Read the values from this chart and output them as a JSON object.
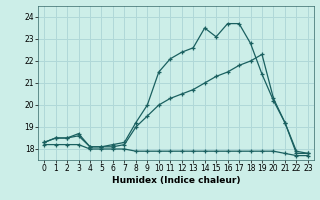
{
  "title": "",
  "xlabel": "Humidex (Indice chaleur)",
  "ylabel": "",
  "bg_color": "#cceee8",
  "line_color": "#1a6060",
  "grid_color": "#b0d8d8",
  "xlim": [
    -0.5,
    23.5
  ],
  "ylim": [
    17.5,
    24.5
  ],
  "x_ticks": [
    0,
    1,
    2,
    3,
    4,
    5,
    6,
    7,
    8,
    9,
    10,
    11,
    12,
    13,
    14,
    15,
    16,
    17,
    18,
    19,
    20,
    21,
    22,
    23
  ],
  "y_ticks": [
    18,
    19,
    20,
    21,
    22,
    23,
    24
  ],
  "series1_x": [
    0,
    1,
    2,
    3,
    4,
    5,
    6,
    7,
    8,
    9,
    10,
    11,
    12,
    13,
    14,
    15,
    16,
    17,
    18,
    19,
    20,
    21,
    22,
    23
  ],
  "series1_y": [
    18.3,
    18.5,
    18.5,
    18.7,
    18.1,
    18.1,
    18.2,
    18.3,
    19.2,
    20.0,
    21.5,
    22.1,
    22.4,
    22.6,
    23.5,
    23.1,
    23.7,
    23.7,
    22.8,
    21.4,
    20.2,
    19.2,
    17.8,
    17.8
  ],
  "series2_x": [
    0,
    1,
    2,
    3,
    4,
    5,
    6,
    7,
    8,
    9,
    10,
    11,
    12,
    13,
    14,
    15,
    16,
    17,
    18,
    19,
    20,
    21,
    22,
    23
  ],
  "series2_y": [
    18.3,
    18.5,
    18.5,
    18.6,
    18.1,
    18.1,
    18.1,
    18.2,
    19.0,
    19.5,
    20.0,
    20.3,
    20.5,
    20.7,
    21.0,
    21.3,
    21.5,
    21.8,
    22.0,
    22.3,
    20.3,
    19.2,
    17.9,
    17.8
  ],
  "series3_x": [
    0,
    1,
    2,
    3,
    4,
    5,
    6,
    7,
    8,
    9,
    10,
    11,
    12,
    13,
    14,
    15,
    16,
    17,
    18,
    19,
    20,
    21,
    22,
    23
  ],
  "series3_y": [
    18.2,
    18.2,
    18.2,
    18.2,
    18.0,
    18.0,
    18.0,
    18.0,
    17.9,
    17.9,
    17.9,
    17.9,
    17.9,
    17.9,
    17.9,
    17.9,
    17.9,
    17.9,
    17.9,
    17.9,
    17.9,
    17.8,
    17.7,
    17.7
  ],
  "xlabel_fontsize": 6.5,
  "tick_fontsize": 5.5,
  "lw": 0.9,
  "ms": 3.0
}
